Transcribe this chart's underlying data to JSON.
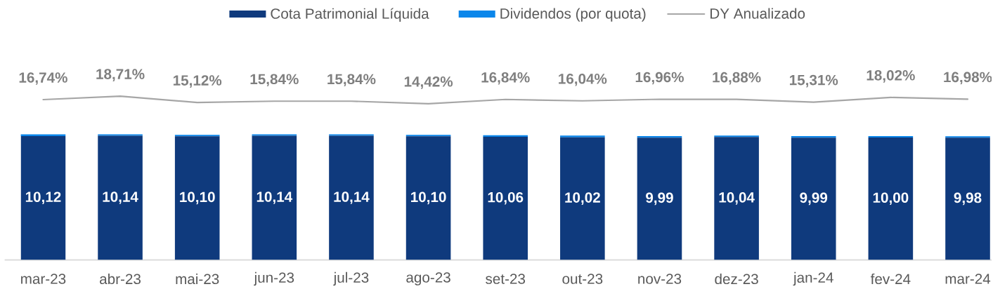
{
  "chart_data": [
    {
      "type": "bar",
      "stacked": true,
      "categories": [
        "mar-23",
        "abr-23",
        "mai-23",
        "jun-23",
        "jul-23",
        "ago-23",
        "set-23",
        "out-23",
        "nov-23",
        "dez-23",
        "jan-24",
        "fev-24",
        "mar-24"
      ],
      "series": [
        {
          "name": "Cota Patrimonial Líquida",
          "color": "#0f3a7d",
          "values": [
            10.12,
            10.14,
            10.1,
            10.14,
            10.14,
            10.1,
            10.06,
            10.02,
            9.99,
            10.04,
            9.99,
            10.0,
            9.98
          ],
          "value_labels": [
            "10,12",
            "10,14",
            "10,10",
            "10,14",
            "10,14",
            "10,10",
            "10,06",
            "10,02",
            "9,99",
            "10,04",
            "9,99",
            "10,00",
            "9,98"
          ]
        },
        {
          "name": "Dividendos (por quota)",
          "color": "#0a86ea",
          "values": [
            0.13,
            0.12,
            0.12,
            0.12,
            0.12,
            0.12,
            0.13,
            0.13,
            0.12,
            0.12,
            0.12,
            0.12,
            0.12
          ]
        }
      ],
      "tick_labels": "x",
      "legend": "top"
    },
    {
      "type": "line",
      "categories": [
        null,
        null,
        null,
        null,
        null,
        null,
        null,
        null,
        null,
        null,
        null,
        null,
        null
      ],
      "series": [
        {
          "name": "DY Anualizado",
          "color": "#a6a6a6",
          "values": [
            16.74,
            18.71,
            15.12,
            15.84,
            15.84,
            14.42,
            16.84,
            16.04,
            16.96,
            16.88,
            15.31,
            18.02,
            16.98
          ],
          "value_labels": [
            "16,74%",
            "18,71%",
            "15,12%",
            "15,84%",
            "15,84%",
            "14,42%",
            "16,84%",
            "16,04%",
            "16,96%",
            "16,88%",
            "15,31%",
            "18,02%",
            "16,98%"
          ]
        }
      ],
      "legend": "top",
      "marker": "none"
    }
  ]
}
